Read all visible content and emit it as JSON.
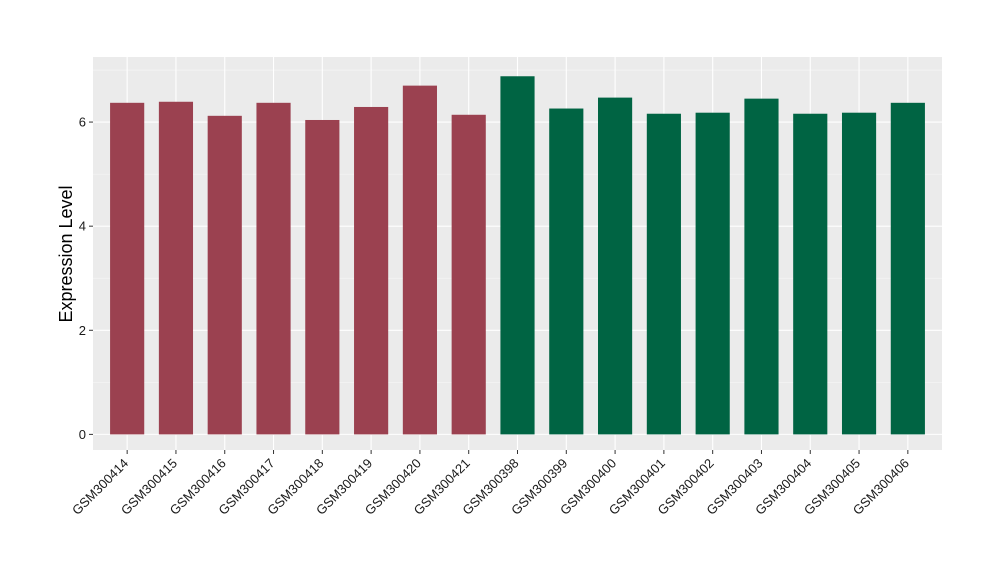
{
  "colors": {
    "panel_background": "#ebebeb",
    "grid_major": "#ffffff",
    "grid_minor": "#f7f7f7",
    "tick_color": "#333333",
    "group_a": "#9b4150",
    "group_b": "#006443"
  },
  "chart_data": {
    "type": "bar",
    "title": "",
    "xlabel": "",
    "ylabel": "Expression Level",
    "ylim": [
      -0.3,
      7.25
    ],
    "yticks": [
      0,
      2,
      4,
      6
    ],
    "grid": true,
    "legend": "none",
    "categories": [
      "GSM300414",
      "GSM300415",
      "GSM300416",
      "GSM300417",
      "GSM300418",
      "GSM300419",
      "GSM300420",
      "GSM300421",
      "GSM300398",
      "GSM300399",
      "GSM300400",
      "GSM300401",
      "GSM300402",
      "GSM300403",
      "GSM300404",
      "GSM300405",
      "GSM300406"
    ],
    "values": [
      6.37,
      6.39,
      6.12,
      6.37,
      6.04,
      6.29,
      6.7,
      6.14,
      6.88,
      6.26,
      6.47,
      6.16,
      6.18,
      6.45,
      6.16,
      6.18,
      6.37
    ],
    "bar_colors": [
      "#9b4150",
      "#9b4150",
      "#9b4150",
      "#9b4150",
      "#9b4150",
      "#9b4150",
      "#9b4150",
      "#9b4150",
      "#006443",
      "#006443",
      "#006443",
      "#006443",
      "#006443",
      "#006443",
      "#006443",
      "#006443",
      "#006443"
    ]
  }
}
